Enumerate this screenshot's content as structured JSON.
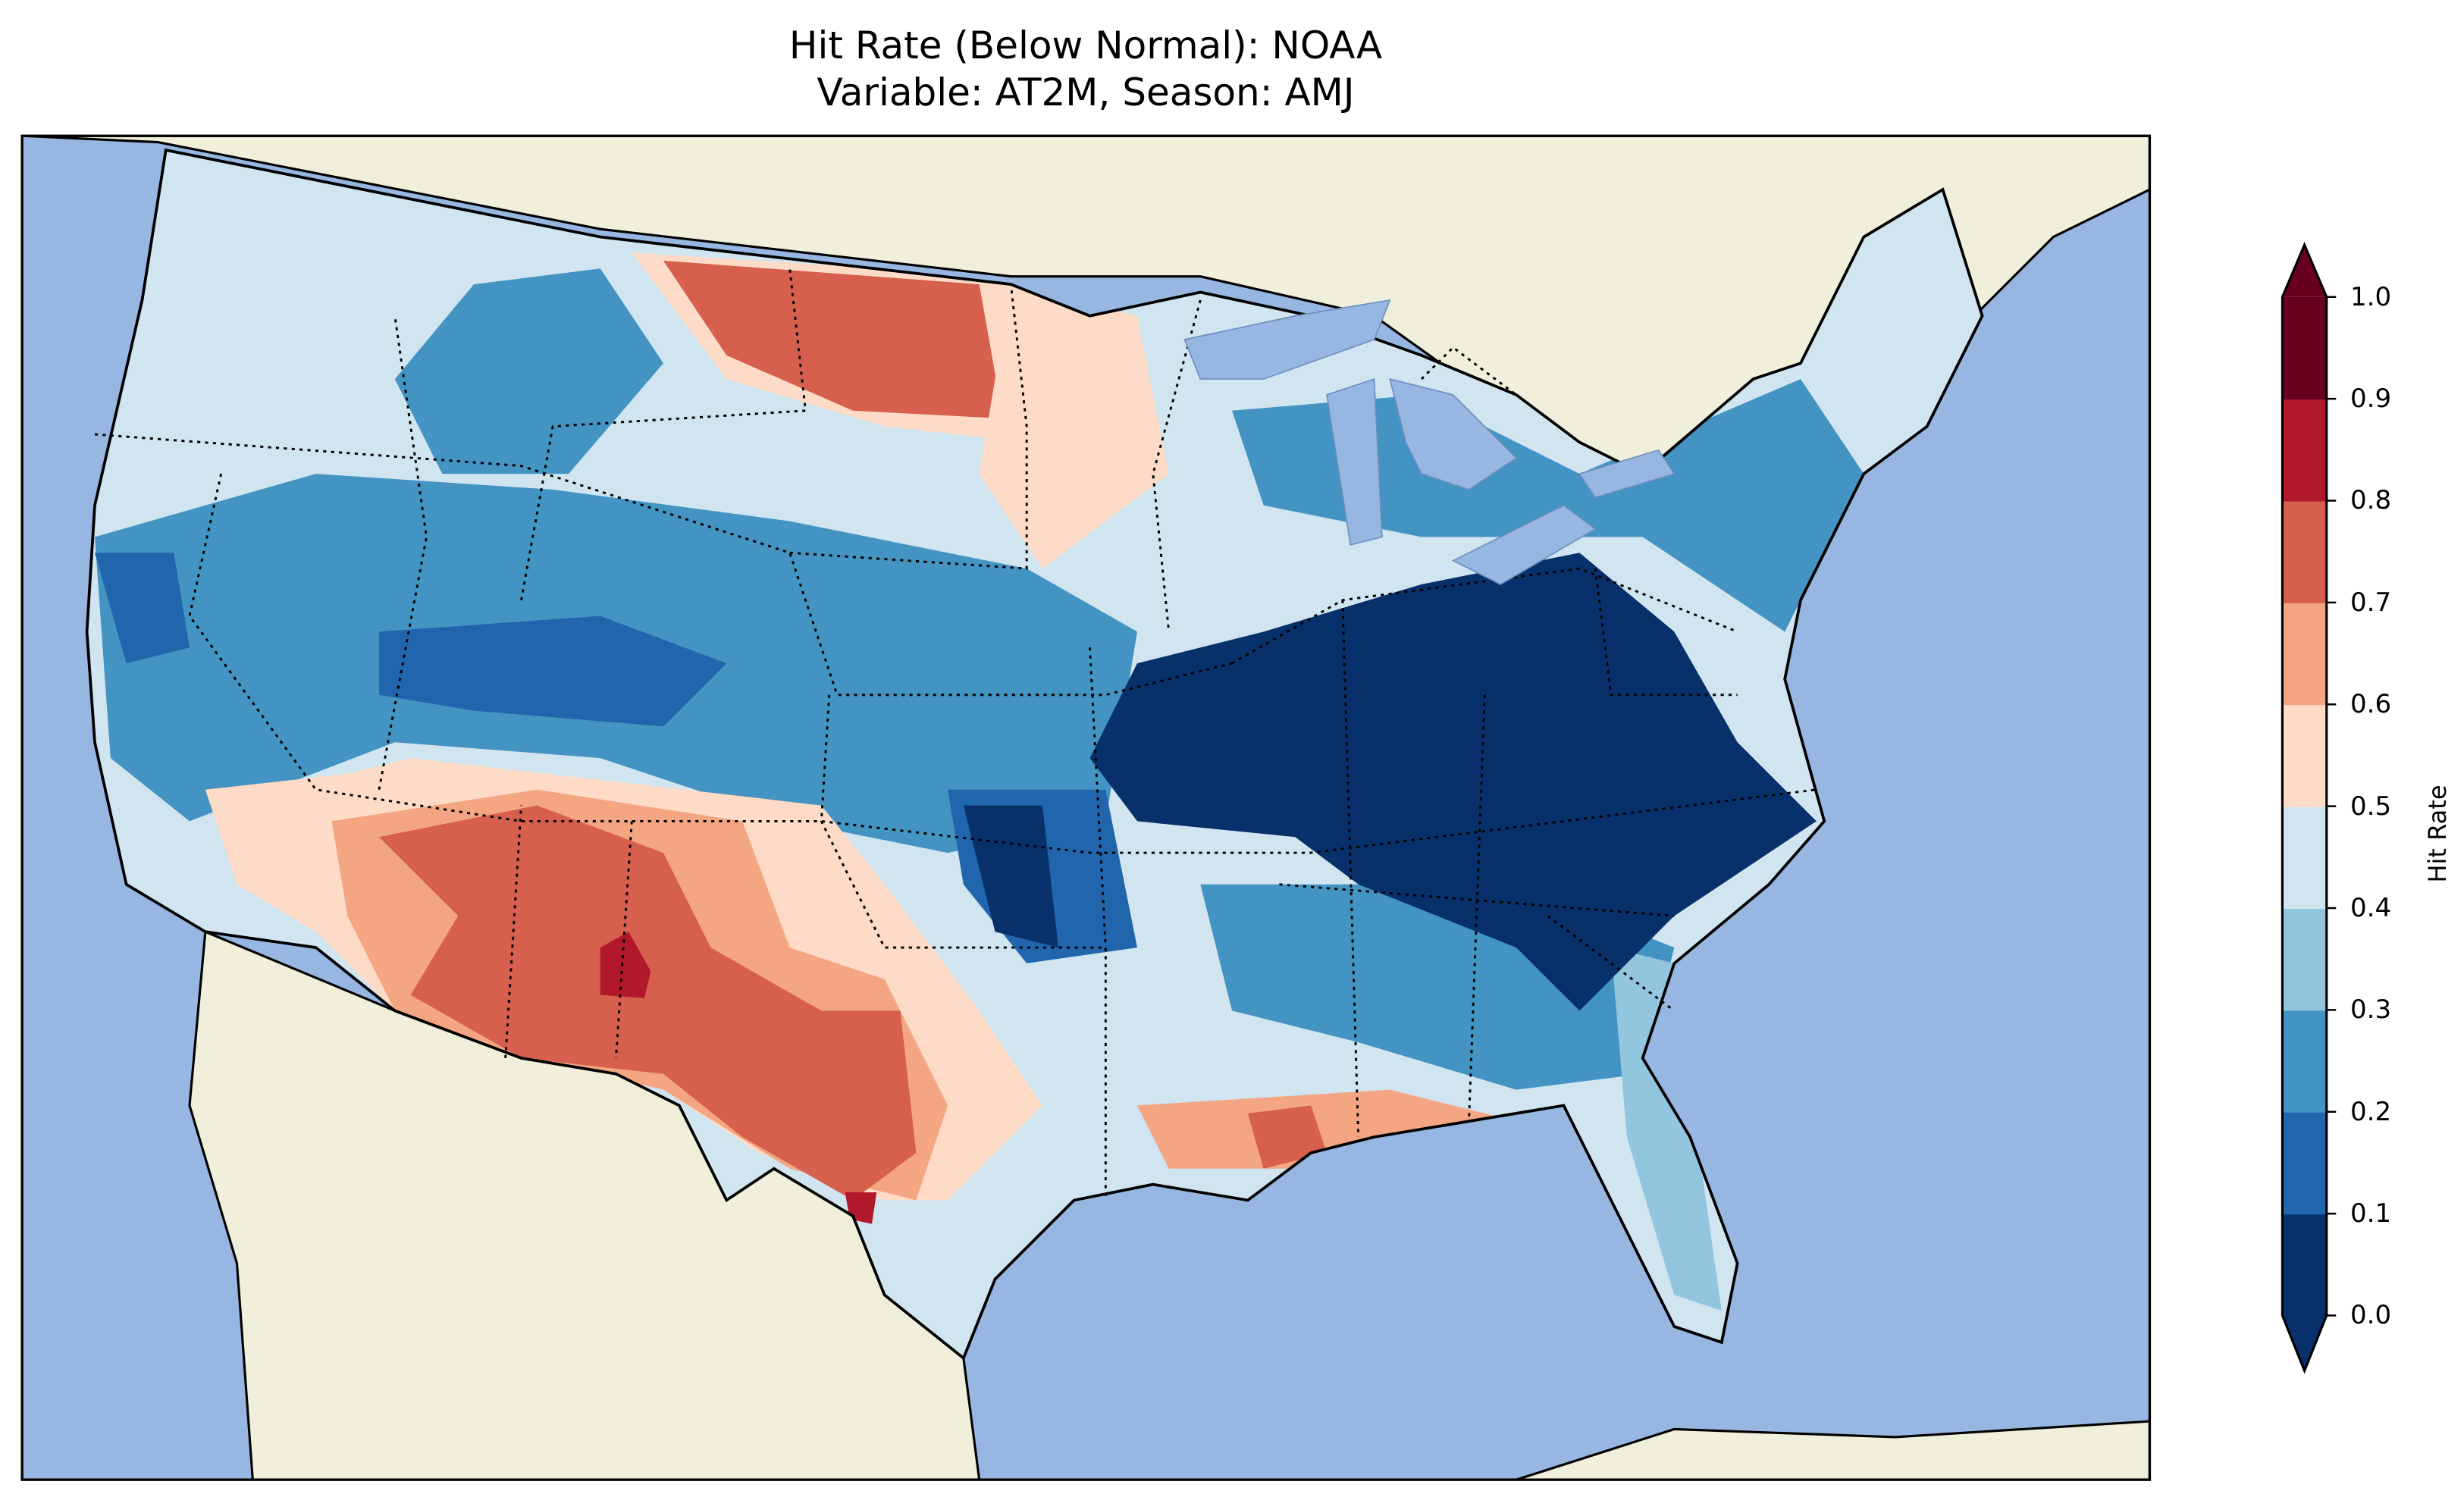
{
  "title": {
    "line1": "Hit Rate (Below Normal): NOAA",
    "line2": "Variable: AT2M, Season: AMJ"
  },
  "colorbar": {
    "label": "Hit Rate",
    "ticks": [
      "0.0",
      "0.1",
      "0.2",
      "0.3",
      "0.4",
      "0.5",
      "0.6",
      "0.7",
      "0.8",
      "0.9",
      "1.0"
    ],
    "colors": [
      "#08306b",
      "#2166ac",
      "#4393c3",
      "#92c5de",
      "#d1e5f0",
      "#fddbc7",
      "#f4a582",
      "#d6604d",
      "#b2182b",
      "#67001f"
    ],
    "extend": "both"
  },
  "map": {
    "ocean_color": "#97b6e1",
    "land_color": "#efefdb",
    "region": "Contiguous United States"
  },
  "chart_data": {
    "type": "heatmap",
    "title": "Hit Rate (Below Normal): NOAA\nVariable: AT2M, Season: AMJ",
    "colorbar_label": "Hit Rate",
    "levels": [
      0.0,
      0.1,
      0.2,
      0.3,
      0.4,
      0.5,
      0.6,
      0.7,
      0.8,
      0.9,
      1.0
    ],
    "range": [
      0,
      1
    ]
  }
}
